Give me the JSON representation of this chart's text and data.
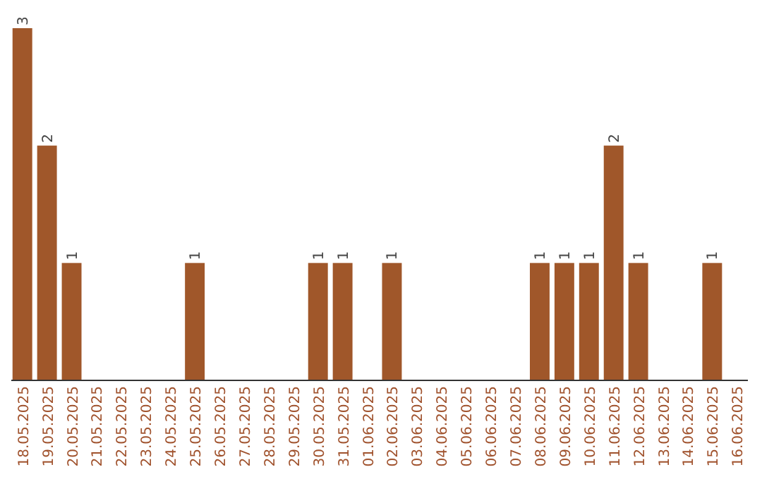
{
  "chart_data": {
    "type": "bar",
    "categories": [
      "18.05.2025",
      "19.05.2025",
      "20.05.2025",
      "21.05.2025",
      "22.05.2025",
      "23.05.2025",
      "24.05.2025",
      "25.05.2025",
      "26.05.2025",
      "27.05.2025",
      "28.05.2025",
      "29.05.2025",
      "30.05.2025",
      "31.05.2025",
      "01.06.2025",
      "02.06.2025",
      "03.06.2025",
      "04.06.2025",
      "05.06.2025",
      "06.06.2025",
      "07.06.2025",
      "08.06.2025",
      "09.06.2025",
      "10.06.2025",
      "11.06.2025",
      "12.06.2025",
      "13.06.2025",
      "14.06.2025",
      "15.06.2025",
      "16.06.2025"
    ],
    "values": [
      3,
      2,
      1,
      0,
      0,
      0,
      0,
      1,
      0,
      0,
      0,
      0,
      1,
      1,
      0,
      1,
      0,
      0,
      0,
      0,
      0,
      1,
      1,
      1,
      2,
      1,
      0,
      0,
      1,
      0
    ],
    "value_labels": [
      "3",
      "2",
      "1",
      null,
      null,
      null,
      null,
      "1",
      null,
      null,
      null,
      null,
      "1",
      "1",
      null,
      "1",
      null,
      null,
      null,
      null,
      null,
      "1",
      "1",
      "1",
      "2",
      "1",
      null,
      null,
      "1",
      null
    ],
    "color": "#a0572a",
    "tick_labels": "x"
  }
}
